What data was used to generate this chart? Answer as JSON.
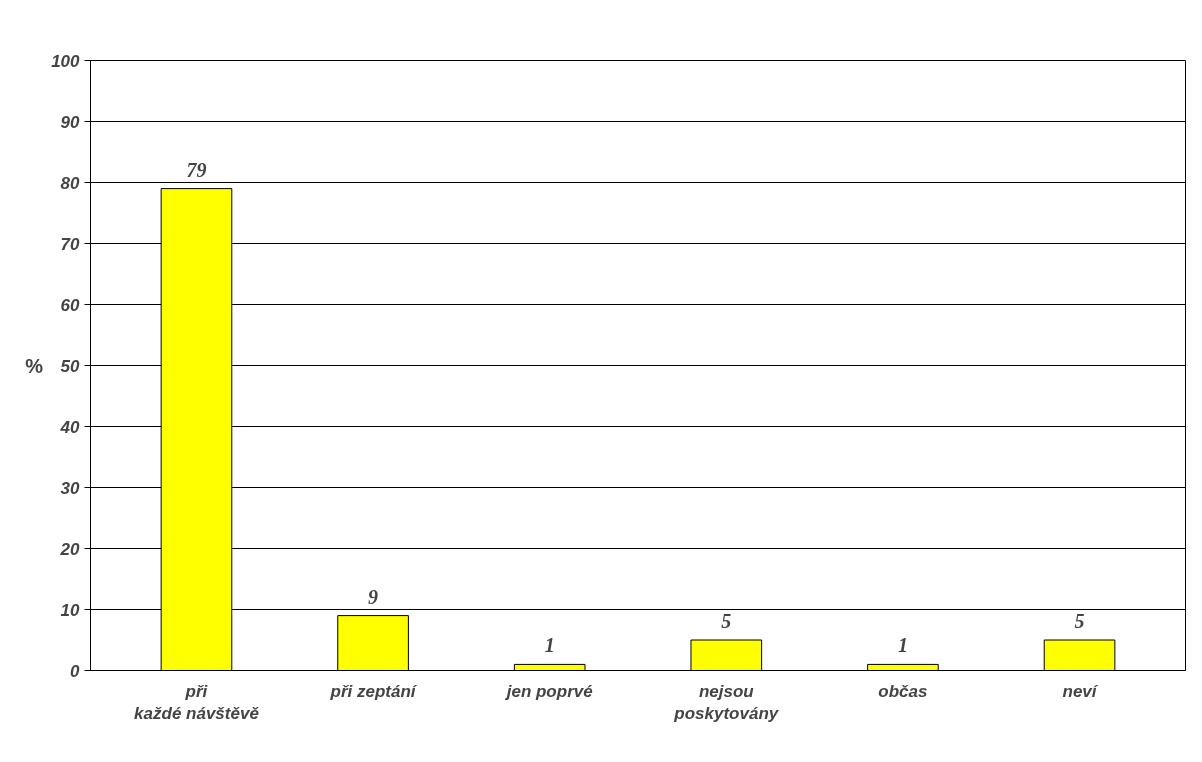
{
  "chart_data": {
    "type": "bar",
    "ylabel": "%",
    "categories": [
      "při každé návštěvě",
      "při zeptání",
      "jen poprvé",
      "nejsou poskytovány",
      "občas",
      "neví"
    ],
    "values": [
      79,
      9,
      1,
      5,
      1,
      5
    ],
    "color": "#ffff00",
    "ylim": [
      0,
      100
    ],
    "yticks": [
      0,
      10,
      20,
      30,
      40,
      50,
      60,
      70,
      80,
      90,
      100
    ],
    "grid": "y",
    "data_labels": true
  }
}
